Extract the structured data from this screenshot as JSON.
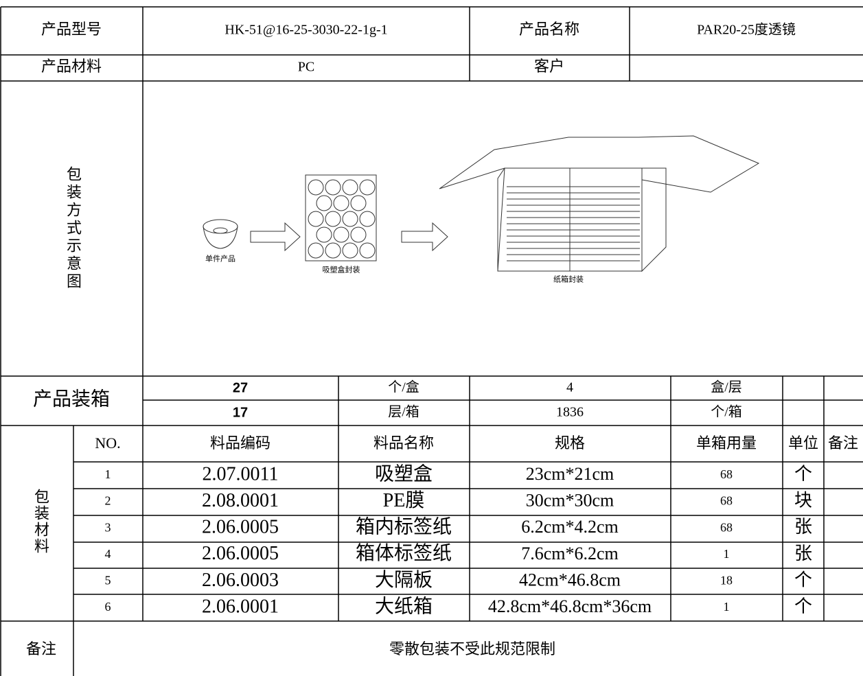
{
  "header": {
    "model_label": "产品型号",
    "model": "HK-51@16-25-3030-22-1g-1",
    "name_label": "产品名称",
    "name": "PAR20-25度透镜",
    "material_label": "产品材料",
    "material": "PC",
    "customer_label": "客户"
  },
  "diagram": {
    "label": "包装方式示意图",
    "captions": [
      "单件产品",
      "吸塑盒封装",
      "纸箱封装"
    ]
  },
  "packing": {
    "label": "产品装箱",
    "rows": [
      [
        27,
        "个/盒",
        4,
        "盒/层"
      ],
      [
        17,
        "层/箱",
        1836,
        "个/箱"
      ]
    ]
  },
  "materials": {
    "label": "包装材料",
    "columns": [
      "NO.",
      "料品编码",
      "料品名称",
      "规格",
      "单箱用量",
      "单位",
      "备注"
    ],
    "rows": [
      [
        1,
        "2.07.0011",
        "吸塑盒",
        "23cm*21cm",
        68,
        "个"
      ],
      [
        2,
        "2.08.0001",
        "PE膜",
        "30cm*30cm",
        68,
        "块"
      ],
      [
        3,
        "2.06.0005",
        "箱内标签纸",
        "6.2cm*4.2cm",
        68,
        "张"
      ],
      [
        4,
        "2.06.0005",
        "箱体标签纸",
        "7.6cm*6.2cm",
        1,
        "张"
      ],
      [
        5,
        "2.06.0003",
        "大隔板",
        "42cm*46.8cm",
        18,
        "个"
      ],
      [
        6,
        "2.06.0001",
        "大纸箱",
        "42.8cm*46.8cm*36cm",
        1,
        "个"
      ]
    ]
  },
  "remarks": {
    "label": "备注",
    "text": "零散包装不受此规范限制"
  }
}
